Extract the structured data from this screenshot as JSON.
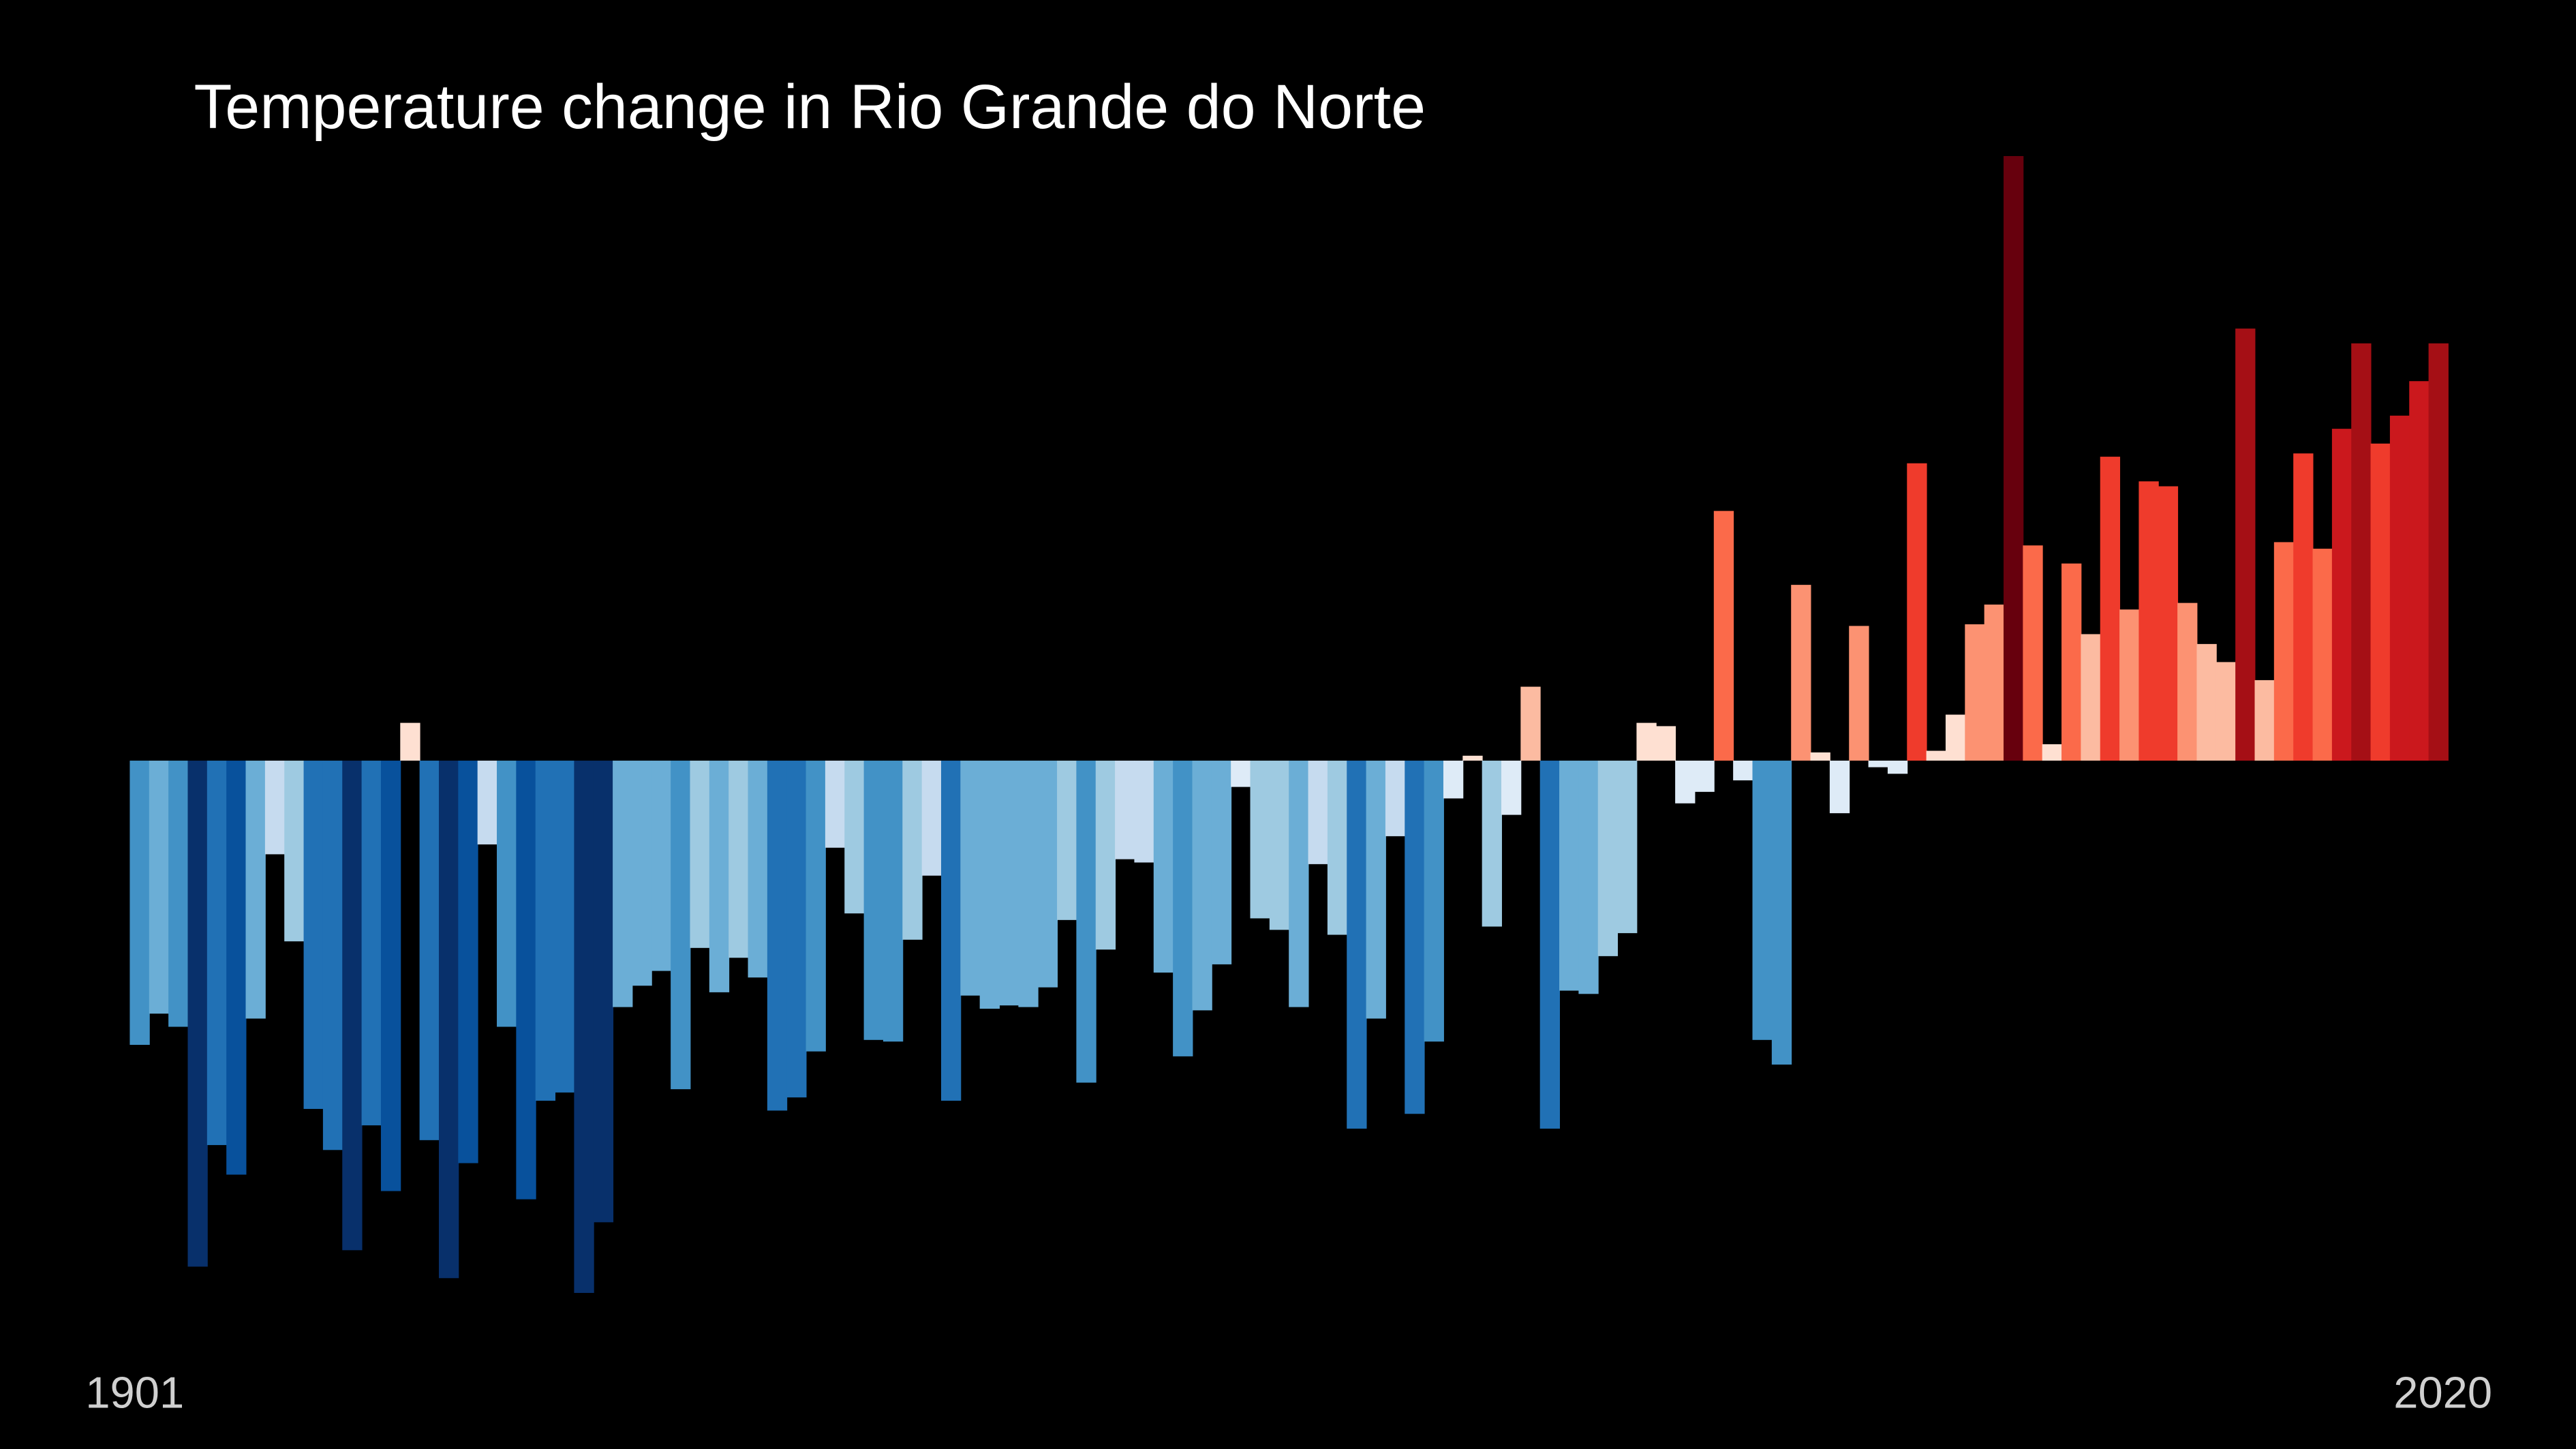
{
  "chart_data": {
    "type": "bar",
    "title": "Temperature change in Rio Grande do Norte",
    "categories": [
      "1901",
      null,
      null,
      null,
      null,
      null,
      null,
      null,
      null,
      null,
      null,
      null,
      null,
      null,
      null,
      null,
      null,
      null,
      null,
      null,
      null,
      null,
      null,
      null,
      null,
      null,
      null,
      null,
      null,
      null,
      null,
      null,
      null,
      null,
      null,
      null,
      null,
      null,
      null,
      null,
      null,
      null,
      null,
      null,
      null,
      null,
      null,
      null,
      null,
      null,
      null,
      null,
      null,
      null,
      null,
      null,
      null,
      null,
      null,
      null,
      null,
      null,
      null,
      null,
      null,
      null,
      null,
      null,
      null,
      null,
      null,
      null,
      null,
      null,
      null,
      null,
      null,
      null,
      null,
      null,
      null,
      null,
      null,
      null,
      null,
      null,
      null,
      null,
      null,
      null,
      null,
      null,
      null,
      null,
      null,
      null,
      null,
      null,
      null,
      null,
      null,
      null,
      null,
      null,
      null,
      null,
      null,
      null,
      null,
      null,
      null,
      null,
      null,
      null,
      null,
      null,
      null,
      null,
      null,
      "2020"
    ],
    "values": [
      -1.73,
      -1.54,
      -1.62,
      -3.08,
      -2.34,
      -2.52,
      -1.57,
      -0.57,
      -1.1,
      -2.12,
      -2.37,
      -2.98,
      -2.22,
      -2.62,
      0.23,
      -2.31,
      -3.15,
      -2.45,
      -0.51,
      -1.62,
      -2.67,
      -2.07,
      -2.02,
      -3.24,
      -2.81,
      -1.5,
      -1.37,
      -1.28,
      -2.0,
      -1.14,
      -1.41,
      -1.2,
      -1.32,
      -2.13,
      -2.05,
      -1.77,
      -0.53,
      -0.93,
      -1.7,
      -1.71,
      -1.09,
      -0.7,
      -2.07,
      -1.43,
      -1.51,
      -1.49,
      -1.5,
      -1.38,
      -0.97,
      -1.96,
      -1.15,
      -0.6,
      -0.62,
      -1.29,
      -1.8,
      -1.52,
      -1.24,
      -0.16,
      -0.96,
      -1.03,
      -1.5,
      -0.63,
      -1.06,
      -2.24,
      -1.57,
      -0.46,
      -2.15,
      -1.71,
      -0.23,
      0.03,
      -1.01,
      -0.33,
      0.45,
      -2.24,
      -1.4,
      -1.42,
      -1.19,
      -1.05,
      0.23,
      0.21,
      -0.26,
      -0.19,
      1.52,
      -0.12,
      -1.7,
      -1.85,
      1.07,
      0.05,
      -0.32,
      0.82,
      -0.04,
      -0.08,
      1.81,
      0.06,
      0.28,
      0.83,
      0.95,
      3.68,
      1.31,
      0.1,
      1.2,
      0.77,
      1.85,
      0.92,
      1.7,
      1.67,
      0.96,
      0.71,
      0.6,
      2.63,
      0.49,
      1.33,
      1.87,
      1.29,
      2.02,
      2.54,
      1.93,
      2.1,
      2.31,
      2.54
    ],
    "ylim": [
      -3.37,
      3.83
    ],
    "colorscale": [
      "#08306b",
      "#08519c",
      "#2171b5",
      "#4292c6",
      "#6baed6",
      "#9ecae1",
      "#c6dbef",
      "#deebf7",
      "#fee0d2",
      "#fcbba1",
      "#fc9272",
      "#fb6a4a",
      "#ef3b2c",
      "#cb181d",
      "#a50f15",
      "#67000d"
    ],
    "clim": [
      -3.2,
      3.2
    ]
  }
}
